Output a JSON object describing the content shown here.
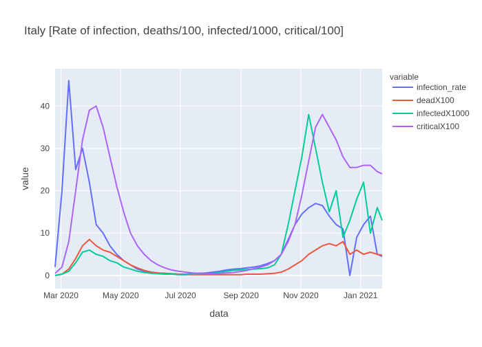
{
  "chart_data": {
    "type": "line",
    "title": "Italy [Rate of infection, deaths/100, infected/1000, critical/100]",
    "xlabel": "data",
    "ylabel": "value",
    "xlim": [
      "2020-02-24",
      "2021-01-23"
    ],
    "ylim": [
      -3.1,
      48.8
    ],
    "grid": true,
    "legend_title": "variable",
    "legend_position": "right",
    "x_ticks": [
      {
        "date": "2020-03-01",
        "label": "Mar 2020"
      },
      {
        "date": "2020-05-01",
        "label": "May 2020"
      },
      {
        "date": "2020-07-01",
        "label": "Jul 2020"
      },
      {
        "date": "2020-09-01",
        "label": "Sep 2020"
      },
      {
        "date": "2020-11-01",
        "label": "Nov 2020"
      },
      {
        "date": "2021-01-01",
        "label": "Jan 2021"
      }
    ],
    "y_ticks": [
      0,
      10,
      20,
      30,
      40
    ],
    "x": [
      "2020-02-24",
      "2020-03-02",
      "2020-03-09",
      "2020-03-16",
      "2020-03-23",
      "2020-03-30",
      "2020-04-06",
      "2020-04-13",
      "2020-04-20",
      "2020-04-27",
      "2020-05-04",
      "2020-05-11",
      "2020-05-18",
      "2020-05-25",
      "2020-06-01",
      "2020-06-08",
      "2020-06-15",
      "2020-06-22",
      "2020-06-29",
      "2020-07-06",
      "2020-07-13",
      "2020-07-20",
      "2020-07-27",
      "2020-08-03",
      "2020-08-10",
      "2020-08-17",
      "2020-08-24",
      "2020-08-31",
      "2020-09-07",
      "2020-09-14",
      "2020-09-21",
      "2020-09-28",
      "2020-10-05",
      "2020-10-12",
      "2020-10-19",
      "2020-10-26",
      "2020-11-02",
      "2020-11-09",
      "2020-11-16",
      "2020-11-23",
      "2020-11-30",
      "2020-12-07",
      "2020-12-14",
      "2020-12-21",
      "2020-12-28",
      "2021-01-04",
      "2021-01-11",
      "2021-01-18",
      "2021-01-23"
    ],
    "series": [
      {
        "name": "infection_rate",
        "color": "#636efa",
        "values": [
          2,
          20,
          46,
          25,
          30,
          22,
          12,
          10,
          7,
          5,
          3.5,
          2.5,
          1.5,
          1,
          0.8,
          0.6,
          0.5,
          0.4,
          0.3,
          0.3,
          0.4,
          0.5,
          0.6,
          0.8,
          1,
          1.3,
          1.5,
          1.6,
          1.8,
          2,
          2.3,
          2.8,
          3.5,
          5,
          8.5,
          12,
          14.5,
          16,
          17,
          16.5,
          14,
          12,
          11,
          0,
          9,
          12,
          14,
          5,
          4.5
        ]
      },
      {
        "name": "deadX100",
        "color": "#EF553B",
        "values": [
          0,
          0.3,
          1.5,
          4,
          7,
          8.5,
          7,
          6,
          5.5,
          4.5,
          3.5,
          2.5,
          1.8,
          1.2,
          0.8,
          0.6,
          0.5,
          0.4,
          0.3,
          0.2,
          0.2,
          0.2,
          0.2,
          0.2,
          0.2,
          0.2,
          0.2,
          0.2,
          0.3,
          0.3,
          0.3,
          0.4,
          0.5,
          0.8,
          1.5,
          2.5,
          3.5,
          5,
          6,
          7,
          7.5,
          7,
          8,
          5,
          6,
          5,
          5.5,
          5,
          4.8
        ]
      },
      {
        "name": "infectedX1000",
        "color": "#00cc96",
        "values": [
          0,
          0.3,
          1,
          3,
          5.5,
          6,
          5,
          4.5,
          3.5,
          3,
          2,
          1.5,
          1,
          0.7,
          0.5,
          0.4,
          0.3,
          0.3,
          0.2,
          0.2,
          0.3,
          0.3,
          0.4,
          0.5,
          0.7,
          1,
          1.2,
          1.3,
          1.4,
          1.5,
          1.6,
          1.8,
          2.5,
          5,
          12,
          20,
          28,
          38,
          30,
          22,
          15,
          20,
          9,
          13,
          18,
          22,
          10,
          16,
          13
        ]
      },
      {
        "name": "criticalX100",
        "color": "#ab63fa",
        "values": [
          0.5,
          2,
          8,
          20,
          32,
          39,
          40,
          35,
          28,
          21,
          15,
          10,
          7,
          5,
          3.5,
          2.5,
          1.8,
          1.3,
          1,
          0.8,
          0.6,
          0.5,
          0.5,
          0.4,
          0.5,
          0.6,
          0.7,
          0.9,
          1.2,
          1.6,
          2,
          2.5,
          3.5,
          5,
          8,
          12,
          19,
          27,
          35,
          38,
          35,
          32,
          28,
          25.5,
          25.5,
          26,
          26,
          24.5,
          24
        ]
      }
    ]
  }
}
